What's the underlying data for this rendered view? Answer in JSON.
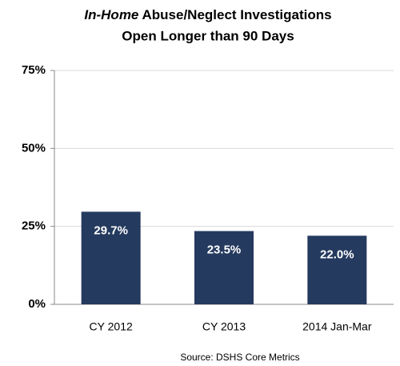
{
  "chart_data": {
    "type": "bar",
    "title": [
      "In-Home",
      " Abuse/Neglect Investigations",
      "Open Longer than 90 Days"
    ],
    "categories": [
      "CY 2012",
      "CY 2013",
      "2014 Jan-Mar"
    ],
    "values": [
      29.7,
      23.5,
      22.0
    ],
    "value_labels": [
      "29.7%",
      "23.5%",
      "22.0%"
    ],
    "color": "#243a5e",
    "ylim": [
      0,
      75
    ],
    "yticks": [
      {
        "value": 0,
        "label": "0%"
      },
      {
        "value": 25,
        "label": "25%"
      },
      {
        "value": 50,
        "label": "50%"
      },
      {
        "value": 75,
        "label": "75%"
      }
    ],
    "grid": true,
    "source": "Source: DSHS Core Metrics"
  }
}
